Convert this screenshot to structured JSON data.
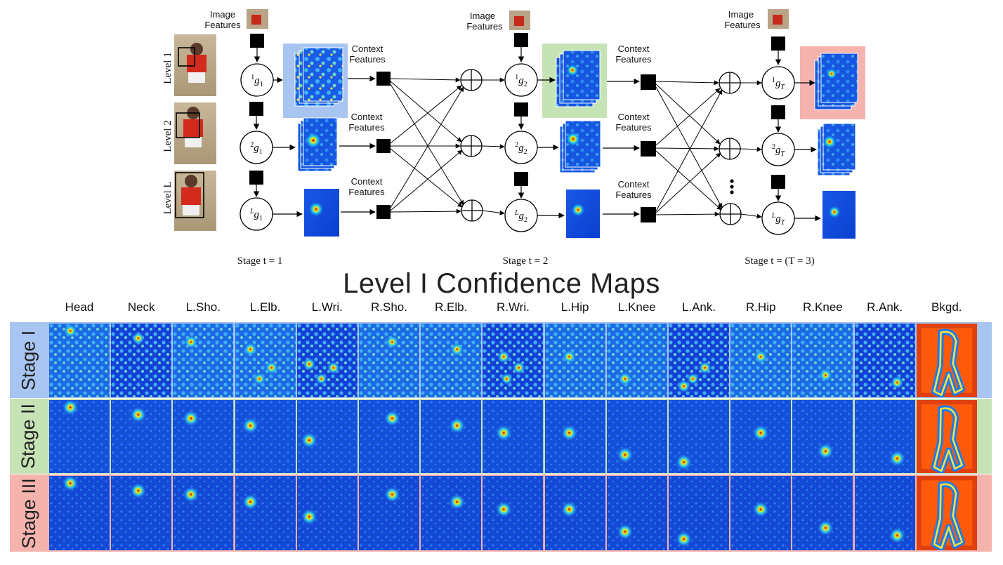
{
  "diagram": {
    "image_features_label": [
      "Image",
      "Features"
    ],
    "context_features_label": [
      "Context",
      "Features"
    ],
    "levels": [
      "Level 1",
      "Level 2",
      "Level L"
    ],
    "stages": [
      "Stage t = 1",
      "Stage t = 2",
      "Stage t = (T = 3)"
    ],
    "nodes": {
      "stage1": [
        "1g1",
        "2g1",
        "Lg1"
      ],
      "stage2": [
        "1g2",
        "2g2",
        "Lg2"
      ],
      "stage3": [
        "1gT",
        "2gT",
        "LgT"
      ]
    },
    "colors": {
      "stage1_highlight": "#a8c4f0",
      "stage2_highlight": "#c6e3b6",
      "stage3_highlight": "#f5b3ae"
    }
  },
  "maps": {
    "title": "Level I Confidence Maps",
    "columns": [
      "Head",
      "Neck",
      "L.Sho.",
      "L.Elb.",
      "L.Wri.",
      "R.Sho.",
      "R.Elb.",
      "R.Wri.",
      "L.Hip",
      "L.Knee",
      "L.Ank.",
      "R.Hip",
      "R.Knee",
      "R.Ank.",
      "Bkgd."
    ],
    "rows": [
      {
        "label": "Stage I",
        "color": "#a8c4f0"
      },
      {
        "label": "Stage II",
        "color": "#c6e3b6"
      },
      {
        "label": "Stage III",
        "color": "#f5b3ae"
      }
    ]
  }
}
